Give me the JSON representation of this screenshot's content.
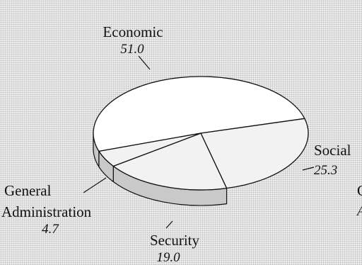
{
  "chart_data": {
    "type": "pie",
    "title": "",
    "slices": [
      {
        "label": "Economic",
        "value": 51.0,
        "value_text": "51.0"
      },
      {
        "label": "Social",
        "value": 25.3,
        "value_text": "25.3"
      },
      {
        "label": "Security",
        "value": 19.0,
        "value_text": "19.0"
      },
      {
        "label": "General Administration",
        "label_lines": [
          "General",
          "Administration"
        ],
        "value": 4.7,
        "value_text": "4.7"
      }
    ],
    "partial_labels": {
      "a": "C",
      "b": "A"
    },
    "colors": {
      "top_fill": "#f2f2f2",
      "economic_fill": "#ffffff",
      "side_fill": "#c9c9c9",
      "stroke": "#111111"
    }
  }
}
